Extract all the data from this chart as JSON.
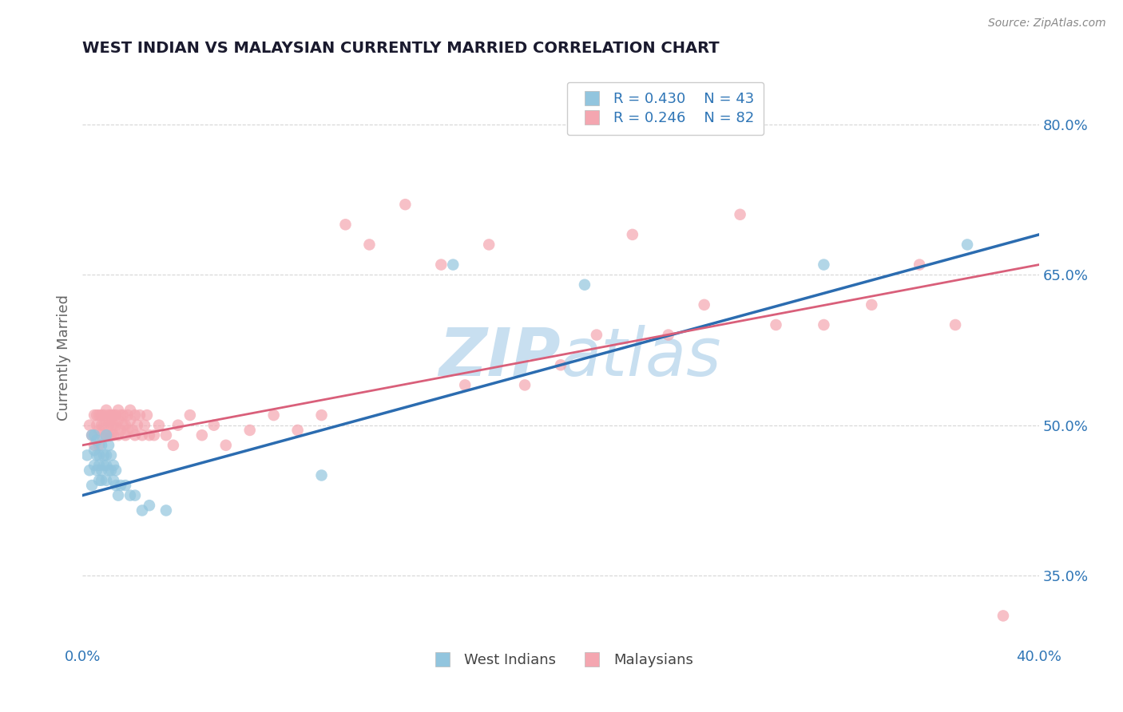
{
  "title": "WEST INDIAN VS MALAYSIAN CURRENTLY MARRIED CORRELATION CHART",
  "source_text": "Source: ZipAtlas.com",
  "ylabel": "Currently Married",
  "legend_labels": [
    "West Indians",
    "Malaysians"
  ],
  "r_west_indian": 0.43,
  "n_west_indian": 43,
  "r_malaysian": 0.246,
  "n_malaysian": 82,
  "xlim": [
    0.0,
    0.4
  ],
  "ylim": [
    0.28,
    0.855
  ],
  "xtick_labels": [
    "0.0%",
    "",
    "",
    "",
    "40.0%"
  ],
  "xtick_values": [
    0.0,
    0.1,
    0.2,
    0.3,
    0.4
  ],
  "ytick_labels": [
    "35.0%",
    "50.0%",
    "65.0%",
    "80.0%"
  ],
  "ytick_values": [
    0.35,
    0.5,
    0.65,
    0.8
  ],
  "blue_color": "#92C5DE",
  "pink_color": "#F4A6B0",
  "blue_line_color": "#2B6CB0",
  "pink_line_color": "#D95F7A",
  "title_color": "#1a1a2e",
  "tick_label_color": "#2E75B6",
  "watermark_color": "#C8DFF0",
  "background_color": "#FFFFFF",
  "grid_color": "#CCCCCC",
  "wi_line_x0": 0.0,
  "wi_line_y0": 0.43,
  "wi_line_x1": 0.4,
  "wi_line_y1": 0.69,
  "mal_line_x0": 0.0,
  "mal_line_y0": 0.48,
  "mal_line_x1": 0.4,
  "mal_line_y1": 0.66,
  "west_indian_x": [
    0.002,
    0.003,
    0.004,
    0.004,
    0.005,
    0.005,
    0.005,
    0.006,
    0.006,
    0.006,
    0.007,
    0.007,
    0.007,
    0.008,
    0.008,
    0.008,
    0.009,
    0.009,
    0.01,
    0.01,
    0.01,
    0.01,
    0.011,
    0.011,
    0.012,
    0.012,
    0.013,
    0.013,
    0.014,
    0.014,
    0.015,
    0.016,
    0.018,
    0.02,
    0.022,
    0.025,
    0.028,
    0.035,
    0.1,
    0.155,
    0.21,
    0.31,
    0.37
  ],
  "west_indian_y": [
    0.47,
    0.455,
    0.44,
    0.49,
    0.46,
    0.475,
    0.49,
    0.455,
    0.47,
    0.485,
    0.445,
    0.46,
    0.47,
    0.445,
    0.455,
    0.48,
    0.46,
    0.47,
    0.445,
    0.46,
    0.47,
    0.49,
    0.455,
    0.48,
    0.455,
    0.47,
    0.445,
    0.46,
    0.44,
    0.455,
    0.43,
    0.44,
    0.44,
    0.43,
    0.43,
    0.415,
    0.42,
    0.415,
    0.45,
    0.66,
    0.64,
    0.66,
    0.68
  ],
  "malaysian_x": [
    0.003,
    0.004,
    0.005,
    0.005,
    0.006,
    0.006,
    0.007,
    0.007,
    0.007,
    0.008,
    0.008,
    0.008,
    0.009,
    0.009,
    0.01,
    0.01,
    0.01,
    0.011,
    0.011,
    0.011,
    0.012,
    0.012,
    0.012,
    0.013,
    0.013,
    0.013,
    0.014,
    0.014,
    0.015,
    0.015,
    0.015,
    0.016,
    0.016,
    0.017,
    0.017,
    0.018,
    0.018,
    0.019,
    0.019,
    0.02,
    0.02,
    0.021,
    0.022,
    0.022,
    0.023,
    0.024,
    0.025,
    0.026,
    0.027,
    0.028,
    0.03,
    0.032,
    0.035,
    0.038,
    0.04,
    0.045,
    0.05,
    0.055,
    0.06,
    0.07,
    0.08,
    0.09,
    0.1,
    0.11,
    0.12,
    0.135,
    0.15,
    0.16,
    0.17,
    0.185,
    0.2,
    0.215,
    0.23,
    0.245,
    0.26,
    0.275,
    0.29,
    0.31,
    0.33,
    0.35,
    0.365,
    0.385
  ],
  "malaysian_y": [
    0.5,
    0.49,
    0.51,
    0.48,
    0.5,
    0.51,
    0.495,
    0.51,
    0.48,
    0.5,
    0.51,
    0.49,
    0.5,
    0.51,
    0.49,
    0.505,
    0.515,
    0.5,
    0.51,
    0.49,
    0.5,
    0.51,
    0.49,
    0.5,
    0.51,
    0.49,
    0.5,
    0.51,
    0.49,
    0.505,
    0.515,
    0.495,
    0.51,
    0.5,
    0.51,
    0.49,
    0.5,
    0.51,
    0.495,
    0.505,
    0.515,
    0.495,
    0.51,
    0.49,
    0.5,
    0.51,
    0.49,
    0.5,
    0.51,
    0.49,
    0.49,
    0.5,
    0.49,
    0.48,
    0.5,
    0.51,
    0.49,
    0.5,
    0.48,
    0.495,
    0.51,
    0.495,
    0.51,
    0.7,
    0.68,
    0.72,
    0.66,
    0.54,
    0.68,
    0.54,
    0.56,
    0.59,
    0.69,
    0.59,
    0.62,
    0.71,
    0.6,
    0.6,
    0.62,
    0.66,
    0.6,
    0.31
  ]
}
